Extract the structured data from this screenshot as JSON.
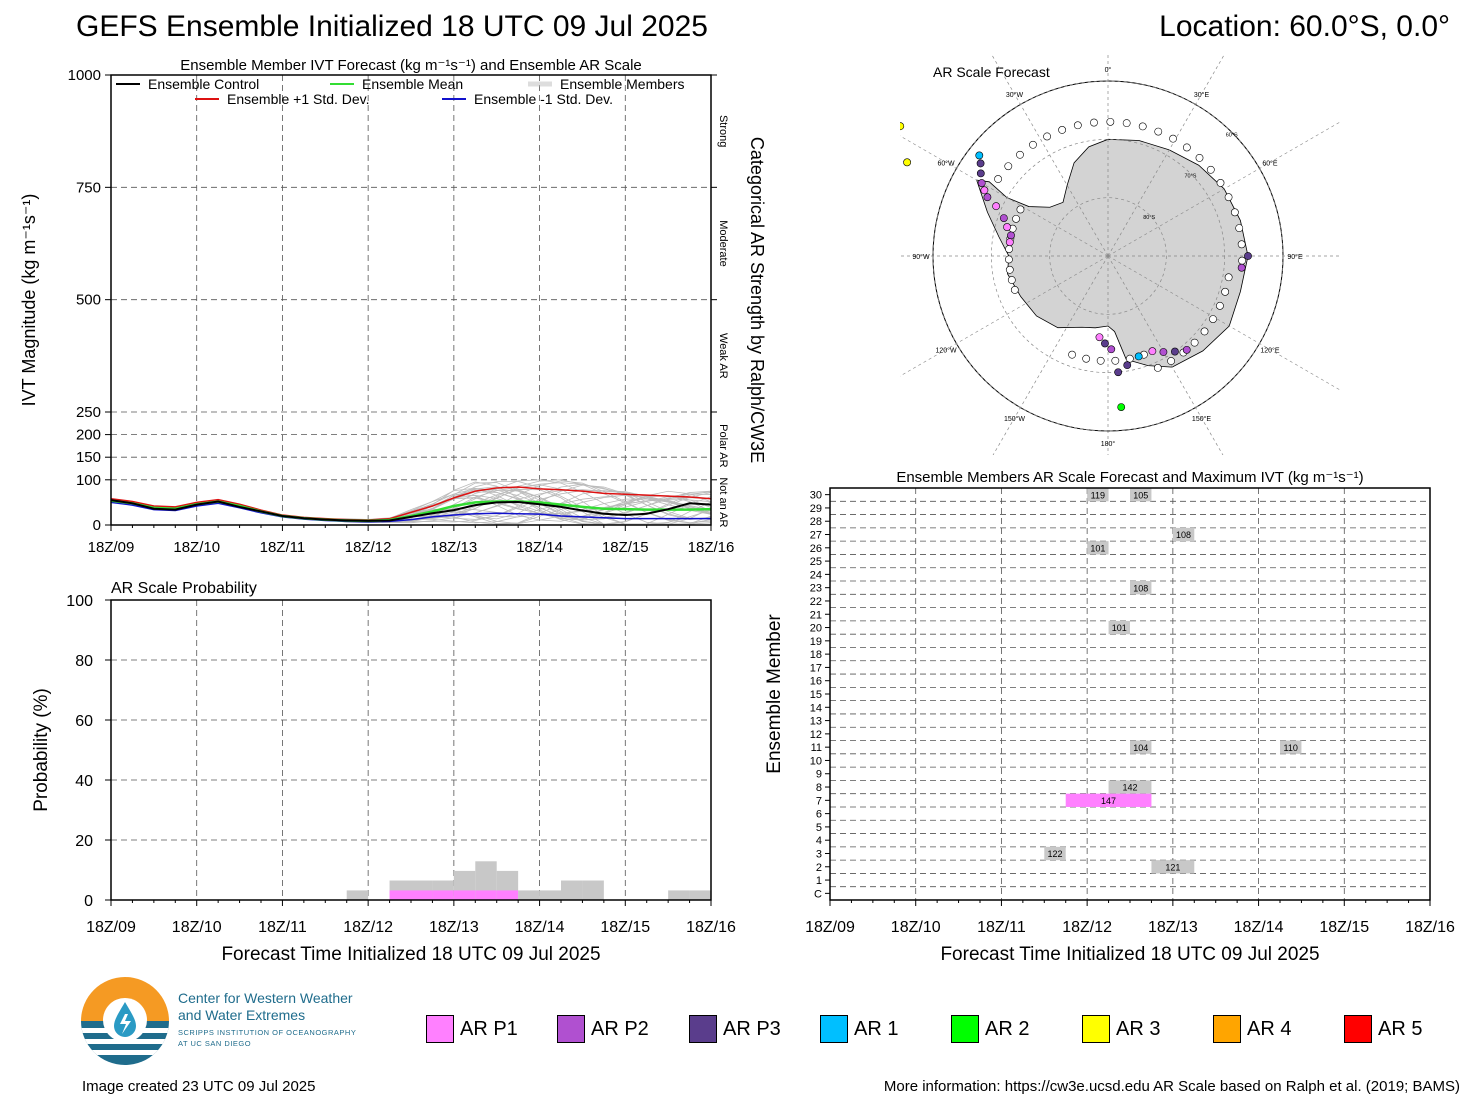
{
  "header": {
    "title": "GEFS Ensemble Initialized 18 UTC 09 Jul 2025",
    "location": "Location: 60.0°S, 0.0°"
  },
  "time_ticks": [
    "18Z/09",
    "18Z/10",
    "18Z/11",
    "18Z/12",
    "18Z/13",
    "18Z/14",
    "18Z/15",
    "18Z/16"
  ],
  "ivt_panel": {
    "title": "Ensemble Member IVT Forecast (kg m⁻¹s⁻¹) and Ensemble AR Scale",
    "ylabel": "IVT Magnitude (kg m⁻¹s⁻¹)",
    "right_label": "Categorical AR Strength by Ralph/CW3E",
    "category_labels": [
      "Strong",
      "Moderate",
      "Weak AR",
      "Polar AR",
      "Not an AR"
    ],
    "legend": {
      "control": "Ensemble Control",
      "mean": "Ensemble Mean",
      "members": "Ensemble Members",
      "plus": "Ensemble +1 Std. Dev.",
      "minus": "Ensemble -1 Std. Dev."
    }
  },
  "prob_panel": {
    "title": "AR Scale Probability",
    "ylabel": "Probability (%)",
    "xlabel": "Forecast Time Initialized 18 UTC 09 Jul 2025"
  },
  "map_panel": {
    "title": "AR Scale Forecast",
    "lon_labels": [
      "0°",
      "30°E",
      "60°E",
      "90°E",
      "120°E",
      "150°E",
      "180°",
      "150°W",
      "120°W",
      "90°W",
      "60°W",
      "30°W"
    ],
    "lat_labels": [
      "60°S",
      "70°S",
      "80°S"
    ]
  },
  "members_panel": {
    "title": "Ensemble Members AR Scale Forecast and Maximum IVT (kg m⁻¹s⁻¹)",
    "ylabel": "Ensemble Member",
    "xlabel": "Forecast Time Initialized 18 UTC 09 Jul 2025",
    "members": [
      "C",
      "1",
      "2",
      "3",
      "4",
      "5",
      "6",
      "7",
      "8",
      "9",
      "10",
      "11",
      "12",
      "13",
      "14",
      "15",
      "16",
      "17",
      "18",
      "19",
      "20",
      "21",
      "22",
      "23",
      "24",
      "25",
      "26",
      "27",
      "28",
      "29",
      "30"
    ]
  },
  "colors": {
    "control": "#000000",
    "mean": "#33dd33",
    "plus": "#dd1111",
    "minus": "#1111cc",
    "members": "#bbbbbb",
    "AR P1": "#ff80ff",
    "AR P2": "#b050d0",
    "AR P3": "#5a3d8c",
    "AR 1": "#00bfff",
    "AR 2": "#00ff00",
    "AR 3": "#ffff00",
    "AR 4": "#ffa500",
    "AR 5": "#ff0000",
    "no_ar": "#c8c8c8"
  },
  "ar_legend": [
    "AR P1",
    "AR P2",
    "AR P3",
    "AR 1",
    "AR 2",
    "AR 3",
    "AR 4",
    "AR 5"
  ],
  "logo": {
    "line1": "Center for Western Weather",
    "line2": "and Water Extremes",
    "line3": "SCRIPPS INSTITUTION OF OCEANOGRAPHY",
    "line4": "AT UC SAN DIEGO"
  },
  "footer": {
    "created": "Image created 23 UTC 09 Jul 2025",
    "more_info": "More information: https://cw3e.ucsd.edu AR Scale based on Ralph et al. (2019; BAMS)"
  },
  "chart_data": [
    {
      "type": "line",
      "title": "Ensemble Member IVT Forecast (kg m⁻¹s⁻¹) and Ensemble AR Scale",
      "ylabel": "IVT Magnitude (kg m⁻¹s⁻¹)",
      "y_ticks": [
        0,
        100,
        150,
        200,
        250,
        500,
        750,
        1000
      ],
      "y_scale": "piecewise: 0-250 linear, 250-1000 linear",
      "x_hours": [
        0,
        6,
        12,
        18,
        24,
        30,
        36,
        42,
        48,
        54,
        60,
        66,
        72,
        78,
        84,
        90,
        96,
        102,
        108,
        114,
        120,
        126,
        132,
        138,
        144,
        150,
        156,
        162,
        168
      ],
      "series": [
        {
          "name": "Ensemble Control",
          "values": [
            55,
            48,
            36,
            34,
            45,
            52,
            40,
            30,
            20,
            15,
            12,
            10,
            9,
            10,
            18,
            26,
            33,
            44,
            50,
            51,
            46,
            40,
            32,
            25,
            22,
            25,
            35,
            48,
            45
          ]
        },
        {
          "name": "Ensemble Mean",
          "values": [
            54,
            48,
            38,
            36,
            46,
            52,
            42,
            30,
            20,
            15,
            12,
            10,
            9,
            11,
            20,
            30,
            42,
            50,
            52,
            52,
            50,
            45,
            40,
            36,
            35,
            34,
            34,
            34,
            35
          ]
        },
        {
          "name": "Ensemble +1 Std. Dev.",
          "values": [
            58,
            52,
            42,
            40,
            50,
            56,
            46,
            33,
            22,
            17,
            14,
            12,
            11,
            14,
            28,
            42,
            60,
            75,
            82,
            84,
            80,
            78,
            75,
            70,
            68,
            66,
            64,
            62,
            58
          ]
        },
        {
          "name": "Ensemble -1 Std. Dev.",
          "values": [
            50,
            44,
            34,
            32,
            42,
            48,
            38,
            27,
            18,
            13,
            10,
            8,
            7,
            8,
            12,
            18,
            22,
            25,
            26,
            25,
            24,
            20,
            18,
            16,
            14,
            14,
            14,
            14,
            14
          ]
        }
      ]
    },
    {
      "type": "bar",
      "title": "AR Scale Probability",
      "ylabel": "Probability (%)",
      "ylim": [
        0,
        100
      ],
      "y_ticks": [
        0,
        20,
        40,
        60,
        80,
        100
      ],
      "bins_start_hour": [
        66,
        72,
        78,
        84,
        90,
        96,
        102,
        108,
        114,
        120,
        126,
        132,
        138,
        144,
        150,
        156,
        162
      ],
      "series": [
        {
          "name": "No AR",
          "values": [
            3.2,
            0,
            6.5,
            6.5,
            6.5,
            9.7,
            12.9,
            9.7,
            3.2,
            3.2,
            6.5,
            6.5,
            0,
            0,
            0,
            3.2,
            3.2
          ]
        },
        {
          "name": "AR P1",
          "values": [
            0,
            0,
            3.2,
            3.2,
            3.2,
            3.2,
            3.2,
            3.2,
            0,
            0,
            0,
            0,
            0,
            0,
            0,
            0,
            0
          ]
        }
      ]
    },
    {
      "type": "heatmap",
      "title": "Ensemble Members AR Scale Forecast and Maximum IVT (kg m⁻¹s⁻¹)",
      "ylabel": "Ensemble Member",
      "bars": [
        {
          "member": 30,
          "start": 72,
          "end": 78,
          "label": "119",
          "cat": "no_ar"
        },
        {
          "member": 30,
          "start": 84,
          "end": 90,
          "label": "105",
          "cat": "no_ar"
        },
        {
          "member": 27,
          "start": 96,
          "end": 102,
          "label": "108",
          "cat": "no_ar"
        },
        {
          "member": 26,
          "start": 72,
          "end": 78,
          "label": "101",
          "cat": "no_ar"
        },
        {
          "member": 23,
          "start": 84,
          "end": 90,
          "label": "108",
          "cat": "no_ar"
        },
        {
          "member": 20,
          "start": 78,
          "end": 84,
          "label": "101",
          "cat": "no_ar"
        },
        {
          "member": 11,
          "start": 84,
          "end": 90,
          "label": "104",
          "cat": "no_ar"
        },
        {
          "member": 11,
          "start": 126,
          "end": 132,
          "label": "110",
          "cat": "no_ar"
        },
        {
          "member": 8,
          "start": 78,
          "end": 90,
          "label": "142",
          "cat": "no_ar"
        },
        {
          "member": 7,
          "start": 66,
          "end": 90,
          "label": "147",
          "cat": "AR P1"
        },
        {
          "member": 3,
          "start": 60,
          "end": 66,
          "label": "122",
          "cat": "no_ar"
        },
        {
          "member": 2,
          "start": 90,
          "end": 102,
          "label": "121",
          "cat": "no_ar"
        }
      ]
    }
  ]
}
